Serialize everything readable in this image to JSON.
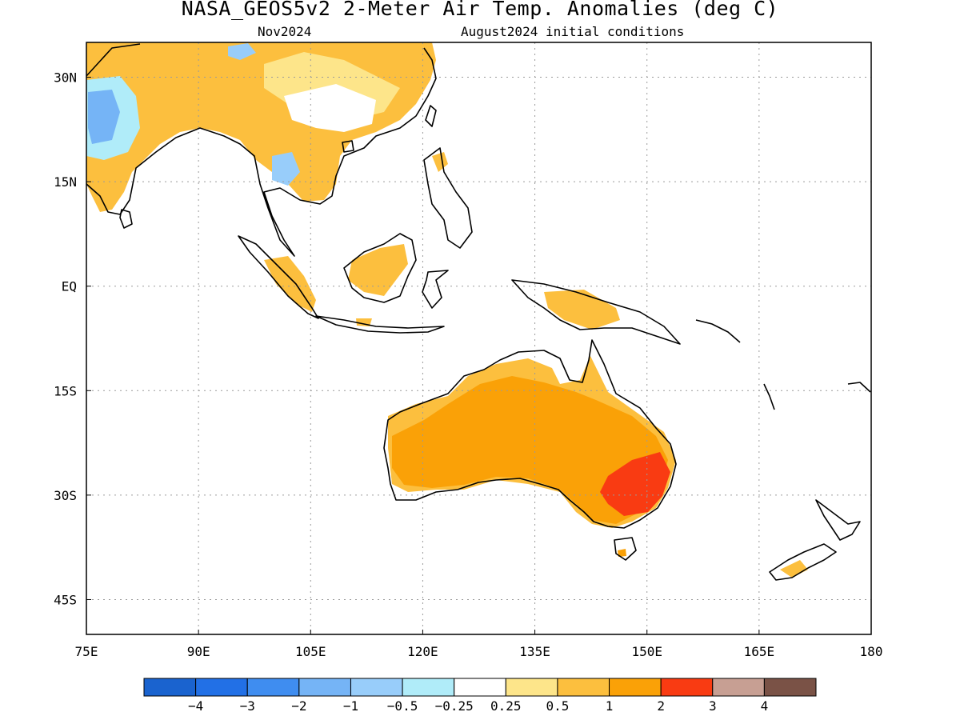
{
  "title": "NASA_GEOS5v2 2-Meter Air Temp. Anomalies (deg C)",
  "subtitle_left": "Nov2024",
  "subtitle_right": "August2024 initial conditions",
  "map": {
    "projection": "latitude-longitude",
    "lon_range": [
      75,
      180
    ],
    "lat_range": [
      -50,
      35
    ],
    "gridlines": "dotted",
    "lon_ticks": [
      "75E",
      "90E",
      "105E",
      "120E",
      "135E",
      "150E",
      "165E",
      "180"
    ],
    "lat_ticks": [
      "30N",
      "15N",
      "EQ",
      "15S",
      "30S",
      "45S"
    ],
    "coastline_color": "#000000"
  },
  "colorbar": {
    "colors": [
      "#1a63cf",
      "#2270e6",
      "#3f8df0",
      "#75b4f6",
      "#98cdfa",
      "#b0ecf9",
      "#ffffff",
      "#fde58a",
      "#fcbf3e",
      "#faa107",
      "#f93b12",
      "#c79f93",
      "#7a5246"
    ],
    "labels": [
      "−4",
      "−3",
      "−2",
      "−1",
      "−0.5",
      "−0.25",
      "0.25",
      "0.5",
      "1",
      "2",
      "3",
      "4"
    ]
  }
}
